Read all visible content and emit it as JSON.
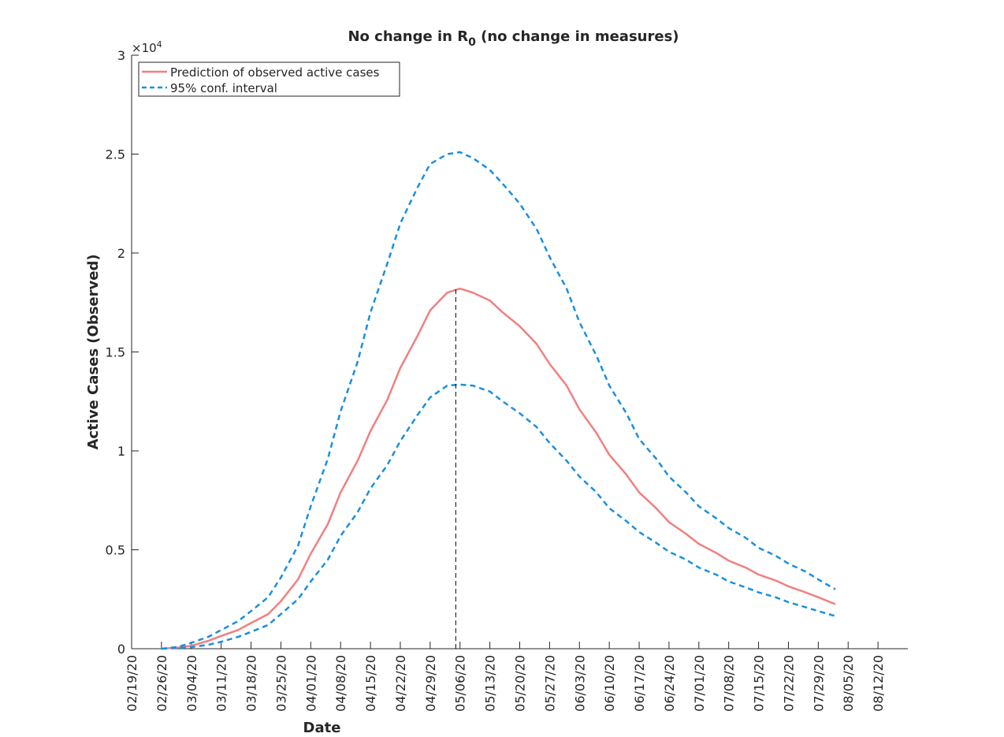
{
  "chart_data": {
    "type": "line",
    "title": "No change in R",
    "title_subscript": "0",
    "title_suffix": " (no change in measures)",
    "xlabel": "Date",
    "ylabel": "Active Cases (Observed)",
    "y_exponent_prefix": "×10",
    "y_exponent": "4",
    "ylim": [
      0,
      30000
    ],
    "yticks": [
      {
        "value": 0,
        "label": "0"
      },
      {
        "value": 5000,
        "label": "0.5"
      },
      {
        "value": 10000,
        "label": "1"
      },
      {
        "value": 15000,
        "label": "1.5"
      },
      {
        "value": 20000,
        "label": "2"
      },
      {
        "value": 25000,
        "label": "2.5"
      },
      {
        "value": 30000,
        "label": "3"
      }
    ],
    "xlim": [
      "2020-02-19",
      "2020-08-19"
    ],
    "xticks": [
      "02/19/20",
      "02/26/20",
      "03/04/20",
      "03/11/20",
      "03/18/20",
      "03/25/20",
      "04/01/20",
      "04/08/20",
      "04/15/20",
      "04/22/20",
      "04/29/20",
      "05/06/20",
      "05/13/20",
      "05/20/20",
      "05/27/20",
      "06/03/20",
      "06/10/20",
      "06/17/20",
      "06/24/20",
      "07/01/20",
      "07/08/20",
      "07/15/20",
      "07/22/20",
      "07/29/20",
      "08/05/20",
      "08/12/20"
    ],
    "grid": false,
    "legend_position": "top-left",
    "peak_marker": {
      "x": "2020-05-05",
      "y": 18200
    },
    "series": [
      {
        "name": "Prediction of observed active cases",
        "color": "#f08080",
        "style": "solid",
        "x": [
          "2020-02-26",
          "2020-03-01",
          "2020-03-04",
          "2020-03-08",
          "2020-03-11",
          "2020-03-15",
          "2020-03-18",
          "2020-03-22",
          "2020-03-25",
          "2020-03-29",
          "2020-04-01",
          "2020-04-05",
          "2020-04-08",
          "2020-04-12",
          "2020-04-15",
          "2020-04-19",
          "2020-04-22",
          "2020-04-26",
          "2020-04-29",
          "2020-05-03",
          "2020-05-06",
          "2020-05-09",
          "2020-05-13",
          "2020-05-16",
          "2020-05-20",
          "2020-05-24",
          "2020-05-27",
          "2020-05-31",
          "2020-06-03",
          "2020-06-07",
          "2020-06-10",
          "2020-06-14",
          "2020-06-17",
          "2020-06-21",
          "2020-06-24",
          "2020-06-28",
          "2020-07-01",
          "2020-07-05",
          "2020-07-08",
          "2020-07-12",
          "2020-07-15",
          "2020-07-19",
          "2020-07-22",
          "2020-07-26",
          "2020-07-29",
          "2020-08-02"
        ],
        "y": [
          0,
          60,
          150,
          400,
          650,
          950,
          1300,
          1750,
          2400,
          3500,
          4800,
          6300,
          7900,
          9500,
          11000,
          12600,
          14200,
          15800,
          17100,
          18000,
          18200,
          18000,
          17600,
          17000,
          16300,
          15400,
          14400,
          13300,
          12100,
          10900,
          9800,
          8800,
          7900,
          7100,
          6400,
          5800,
          5300,
          4850,
          4450,
          4100,
          3750,
          3450,
          3150,
          2850,
          2600,
          2250
        ]
      },
      {
        "name": "95% conf. interval",
        "color": "#1a8fe0",
        "style": "dashed",
        "x": [
          "2020-02-26",
          "2020-03-01",
          "2020-03-04",
          "2020-03-08",
          "2020-03-11",
          "2020-03-15",
          "2020-03-18",
          "2020-03-22",
          "2020-03-25",
          "2020-03-29",
          "2020-04-01",
          "2020-04-05",
          "2020-04-08",
          "2020-04-12",
          "2020-04-15",
          "2020-04-19",
          "2020-04-22",
          "2020-04-26",
          "2020-04-29",
          "2020-05-03",
          "2020-05-06",
          "2020-05-09",
          "2020-05-13",
          "2020-05-16",
          "2020-05-20",
          "2020-05-24",
          "2020-05-27",
          "2020-05-31",
          "2020-06-03",
          "2020-06-07",
          "2020-06-10",
          "2020-06-14",
          "2020-06-17",
          "2020-06-21",
          "2020-06-24",
          "2020-06-28",
          "2020-07-01",
          "2020-07-05",
          "2020-07-08",
          "2020-07-12",
          "2020-07-15",
          "2020-07-19",
          "2020-07-22",
          "2020-07-26",
          "2020-07-29",
          "2020-08-02"
        ],
        "y": [
          0,
          100,
          300,
          600,
          950,
          1400,
          1900,
          2600,
          3600,
          5200,
          7200,
          9600,
          12000,
          14500,
          17000,
          19500,
          21500,
          23300,
          24500,
          25000,
          25100,
          24800,
          24200,
          23500,
          22500,
          21200,
          19800,
          18200,
          16500,
          14800,
          13300,
          11900,
          10600,
          9600,
          8700,
          7900,
          7200,
          6600,
          6100,
          5600,
          5100,
          4700,
          4300,
          3900,
          3500,
          3000
        ]
      },
      {
        "name": "",
        "color": "#1a8fe0",
        "style": "dashed",
        "x": [
          "2020-02-26",
          "2020-03-01",
          "2020-03-04",
          "2020-03-08",
          "2020-03-11",
          "2020-03-15",
          "2020-03-18",
          "2020-03-22",
          "2020-03-25",
          "2020-03-29",
          "2020-04-01",
          "2020-04-05",
          "2020-04-08",
          "2020-04-12",
          "2020-04-15",
          "2020-04-19",
          "2020-04-22",
          "2020-04-26",
          "2020-04-29",
          "2020-05-03",
          "2020-05-06",
          "2020-05-09",
          "2020-05-13",
          "2020-05-16",
          "2020-05-20",
          "2020-05-24",
          "2020-05-27",
          "2020-05-31",
          "2020-06-03",
          "2020-06-07",
          "2020-06-10",
          "2020-06-14",
          "2020-06-17",
          "2020-06-21",
          "2020-06-24",
          "2020-06-28",
          "2020-07-01",
          "2020-07-05",
          "2020-07-08",
          "2020-07-12",
          "2020-07-15",
          "2020-07-19",
          "2020-07-22",
          "2020-07-26",
          "2020-07-29",
          "2020-08-02"
        ],
        "y": [
          0,
          30,
          80,
          200,
          350,
          600,
          850,
          1200,
          1750,
          2500,
          3400,
          4500,
          5700,
          6900,
          8100,
          9300,
          10500,
          11800,
          12700,
          13300,
          13350,
          13300,
          13000,
          12500,
          11900,
          11200,
          10400,
          9500,
          8700,
          7900,
          7100,
          6450,
          5900,
          5350,
          4900,
          4500,
          4100,
          3750,
          3400,
          3100,
          2850,
          2600,
          2350,
          2100,
          1900,
          1650
        ]
      }
    ]
  }
}
